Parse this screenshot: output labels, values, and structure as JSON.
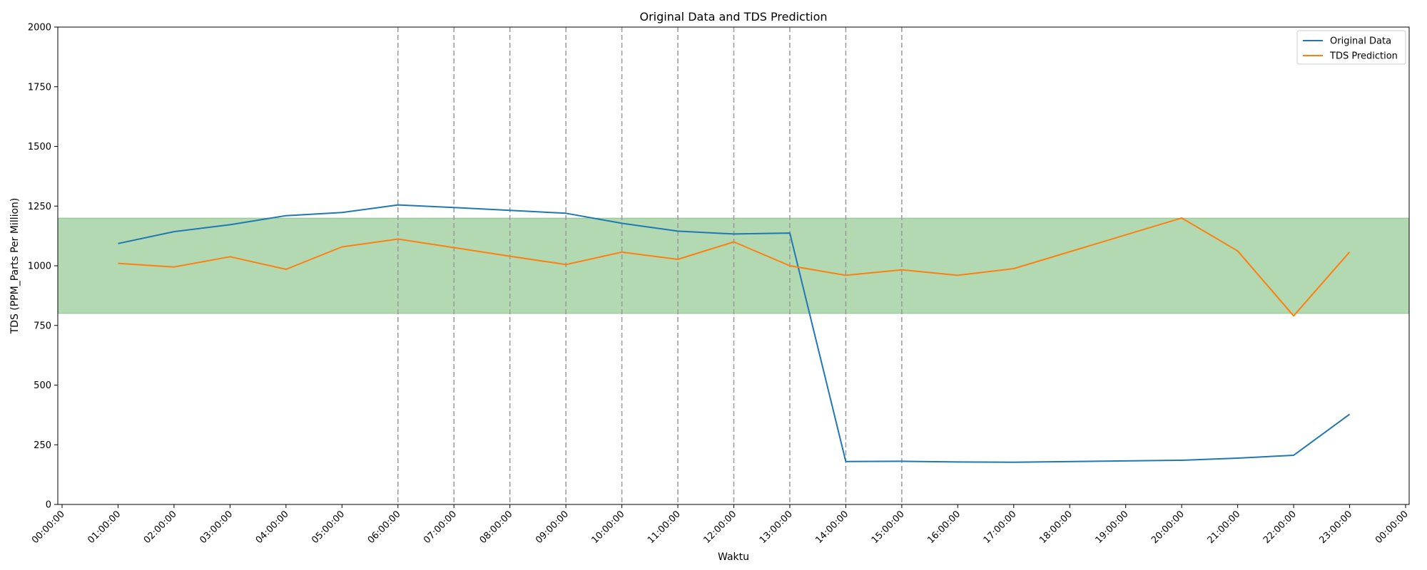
{
  "chart_data": {
    "type": "line",
    "title": "Original Data and TDS Prediction",
    "xlabel": "Waktu",
    "ylabel": "TDS (PPM_Parts Per Million)",
    "ylim": [
      0,
      2000
    ],
    "yticks": [
      0,
      250,
      500,
      750,
      1000,
      1250,
      1500,
      1750,
      2000
    ],
    "xticks": [
      "00:00:00",
      "01:00:00",
      "02:00:00",
      "03:00:00",
      "04:00:00",
      "05:00:00",
      "06:00:00",
      "07:00:00",
      "08:00:00",
      "09:00:00",
      "10:00:00",
      "11:00:00",
      "12:00:00",
      "13:00:00",
      "14:00:00",
      "15:00:00",
      "16:00:00",
      "17:00:00",
      "18:00:00",
      "19:00:00",
      "20:00:00",
      "21:00:00",
      "22:00:00",
      "23:00:00",
      "00:00:00"
    ],
    "highlight_ticks": [
      "06:00:00",
      "07:00:00",
      "08:00:00",
      "09:00:00",
      "10:00:00",
      "11:00:00",
      "12:00:00",
      "13:00:00",
      "14:00:00",
      "15:00:00"
    ],
    "highlight_color": "#ff0000",
    "band": {
      "from": 800,
      "to": 1200,
      "color": "#008000"
    },
    "grid": false,
    "legend_position": "top-right",
    "series": [
      {
        "name": "Original Data",
        "color": "#1f77b4",
        "x": [
          "01:00:00",
          "02:00:00",
          "03:00:00",
          "04:00:00",
          "05:00:00",
          "06:00:00",
          "07:00:00",
          "08:00:00",
          "09:00:00",
          "10:00:00",
          "11:00:00",
          "12:00:00",
          "13:00:00",
          "14:00:00",
          "15:00:00",
          "16:00:00",
          "17:00:00",
          "20:00:00",
          "21:00:00",
          "22:00:00",
          "23:00:00"
        ],
        "values": [
          1093,
          1143,
          1172,
          1210,
          1223,
          1255,
          1244,
          1232,
          1220,
          1178,
          1145,
          1133,
          1137,
          180,
          181,
          178,
          177,
          185,
          194,
          206,
          378
        ]
      },
      {
        "name": "TDS Prediction",
        "color": "#ff7f0e",
        "x": [
          "01:00:00",
          "02:00:00",
          "03:00:00",
          "04:00:00",
          "05:00:00",
          "06:00:00",
          "07:00:00",
          "08:00:00",
          "09:00:00",
          "10:00:00",
          "11:00:00",
          "12:00:00",
          "13:00:00",
          "14:00:00",
          "15:00:00",
          "16:00:00",
          "17:00:00",
          "20:00:00",
          "21:00:00",
          "22:00:00",
          "23:00:00"
        ],
        "values": [
          1010,
          995,
          1038,
          985,
          1079,
          1112,
          1076,
          1040,
          1005,
          1057,
          1027,
          1100,
          1000,
          960,
          983,
          960,
          988,
          1200,
          1062,
          790,
          1058
        ]
      }
    ]
  }
}
